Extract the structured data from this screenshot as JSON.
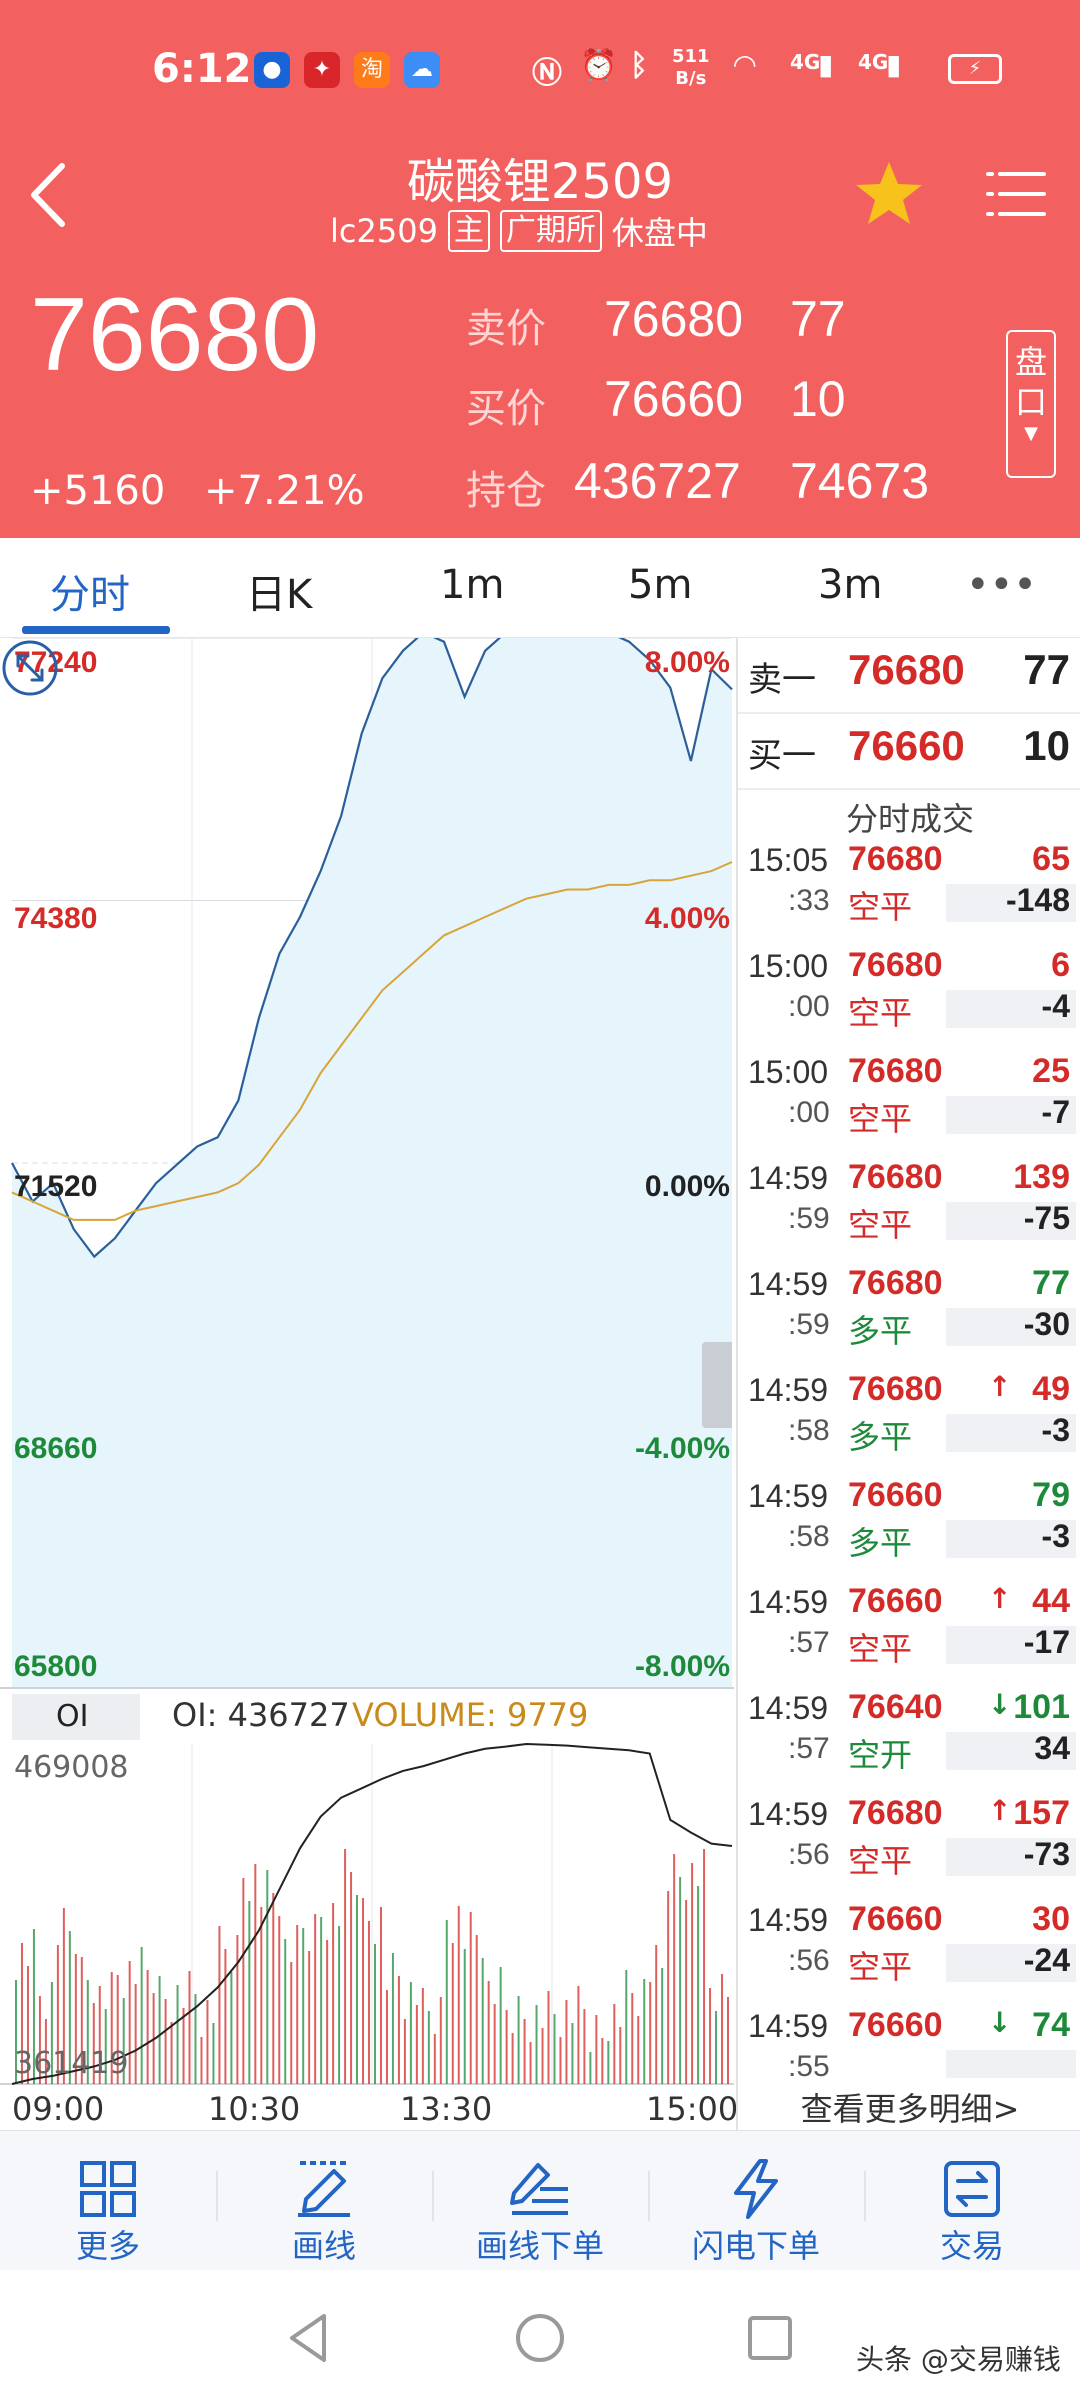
{
  "status_bar": {
    "time": "6:12",
    "app_icons": [
      "qq-icon",
      "app-red-icon",
      "taobao-icon",
      "weather-icon"
    ],
    "taobao_glyph": "淘",
    "net_speed_top": "511",
    "net_speed_bottom": "B/s",
    "net_4g_1": "4G",
    "net_4g_2": "4G"
  },
  "header": {
    "title": "碳酸锂2509",
    "code": "lc2509",
    "main_tag": "主",
    "exchange": "广期所",
    "status": "休盘中",
    "last_price": "76680",
    "change": "+5160",
    "change_pct": "+7.21%",
    "ask_label": "卖价",
    "ask_price": "76680",
    "ask_vol": "77",
    "bid_label": "买价",
    "bid_price": "76660",
    "bid_vol": "10",
    "oi_label": "持仓",
    "oi_value": "436727",
    "oi_change": "74673",
    "depth_button": "盘口",
    "colors": {
      "background": "#f2605f",
      "star": "#f7c21b"
    }
  },
  "tabs": [
    {
      "label": "分时",
      "active": true
    },
    {
      "label": "日K",
      "active": false
    },
    {
      "label": "1m",
      "active": false
    },
    {
      "label": "5m",
      "active": false
    },
    {
      "label": "3m",
      "active": false
    },
    {
      "label": "•••",
      "active": false
    }
  ],
  "chart": {
    "price_labels": [
      {
        "left": "77240",
        "right": "8.00%",
        "color": "red"
      },
      {
        "left": "74380",
        "right": "4.00%",
        "color": "red"
      },
      {
        "left": "71520",
        "right": "0.00%",
        "color": "neutral"
      },
      {
        "left": "68660",
        "right": "-4.00%",
        "color": "green"
      },
      {
        "left": "65800",
        "right": "-8.00%",
        "color": "green"
      }
    ],
    "oi_button": "OI",
    "oi_info": "OI: 436727",
    "volume_info": "VOLUME: 9779",
    "oi_max": "469008",
    "oi_min": "361419",
    "time_labels": [
      "09:00",
      "10:30",
      "13:30",
      "15:00"
    ]
  },
  "chart_data": {
    "type": "line",
    "title": "",
    "ylim": [
      65800,
      77240
    ],
    "prev_settle": 71520,
    "x_ticks": [
      "09:00",
      "10:30",
      "13:30",
      "15:00"
    ],
    "series": [
      {
        "values": [
          71520,
          71100,
          71300,
          70800,
          70500,
          70700,
          71000,
          71300,
          71500,
          71700,
          71800,
          72200,
          73100,
          73800,
          74200,
          74700,
          75300,
          76200,
          76800,
          77100,
          77300,
          77200,
          76600,
          77100,
          77300,
          77400,
          77300,
          77400,
          77300,
          77300,
          77200,
          77000,
          76700,
          75900,
          76900,
          76680
        ]
      },
      {
        "values": [
          71200,
          71100,
          71000,
          70900,
          70900,
          70900,
          71000,
          71050,
          71100,
          71150,
          71200,
          71300,
          71500,
          71800,
          72100,
          72500,
          72800,
          73100,
          73400,
          73600,
          73800,
          74000,
          74100,
          74200,
          74300,
          74400,
          74450,
          74500,
          74500,
          74550,
          74550,
          74600,
          74600,
          74650,
          74700,
          74800
        ]
      }
    ],
    "oi_series": {
      "ylim": [
        361419,
        469008
      ],
      "values": [
        361419,
        363000,
        364000,
        365500,
        367000,
        369000,
        372000,
        376000,
        381000,
        386000,
        392000,
        400000,
        410000,
        423000,
        436000,
        446000,
        452000,
        455000,
        458000,
        460500,
        462000,
        464000,
        466000,
        467500,
        468200,
        469008,
        468800,
        468500,
        468000,
        467500,
        467000,
        466000,
        445000,
        441000,
        437500,
        436727
      ]
    }
  },
  "orderbook": {
    "ask_label": "卖一",
    "ask_price": "76680",
    "ask_vol": "77",
    "bid_label": "买一",
    "bid_price": "76660",
    "bid_vol": "10"
  },
  "ticks_title": "分时成交",
  "ticks": [
    {
      "hm": "15:05",
      "sec": ":33",
      "price": "76680",
      "arrow": "",
      "vol": "65",
      "vol_color": "red",
      "type": "空平",
      "type_color": "red",
      "oi": "-148"
    },
    {
      "hm": "15:00",
      "sec": ":00",
      "price": "76680",
      "arrow": "",
      "vol": "6",
      "vol_color": "red",
      "type": "空平",
      "type_color": "red",
      "oi": "-4"
    },
    {
      "hm": "15:00",
      "sec": ":00",
      "price": "76680",
      "arrow": "",
      "vol": "25",
      "vol_color": "red",
      "type": "空平",
      "type_color": "red",
      "oi": "-7"
    },
    {
      "hm": "14:59",
      "sec": ":59",
      "price": "76680",
      "arrow": "",
      "vol": "139",
      "vol_color": "red",
      "type": "空平",
      "type_color": "red",
      "oi": "-75"
    },
    {
      "hm": "14:59",
      "sec": ":59",
      "price": "76680",
      "arrow": "",
      "vol": "77",
      "vol_color": "green",
      "type": "多平",
      "type_color": "green",
      "oi": "-30"
    },
    {
      "hm": "14:59",
      "sec": ":58",
      "price": "76680",
      "arrow": "↑",
      "vol": "49",
      "vol_color": "red",
      "type": "多平",
      "type_color": "green",
      "oi": "-3"
    },
    {
      "hm": "14:59",
      "sec": ":58",
      "price": "76660",
      "arrow": "",
      "vol": "79",
      "vol_color": "green",
      "type": "多平",
      "type_color": "green",
      "oi": "-3"
    },
    {
      "hm": "14:59",
      "sec": ":57",
      "price": "76660",
      "arrow": "↑",
      "vol": "44",
      "vol_color": "red",
      "type": "空平",
      "type_color": "red",
      "oi": "-17"
    },
    {
      "hm": "14:59",
      "sec": ":57",
      "price": "76640",
      "arrow": "↓",
      "vol": "101",
      "vol_color": "green",
      "type": "空开",
      "type_color": "green",
      "oi": "34"
    },
    {
      "hm": "14:59",
      "sec": ":56",
      "price": "76680",
      "arrow": "↑",
      "vol": "157",
      "vol_color": "red",
      "type": "空平",
      "type_color": "red",
      "oi": "-73"
    },
    {
      "hm": "14:59",
      "sec": ":56",
      "price": "76660",
      "arrow": "",
      "vol": "30",
      "vol_color": "red",
      "type": "空平",
      "type_color": "red",
      "oi": "-24"
    },
    {
      "hm": "14:59",
      "sec": ":55",
      "price": "76660",
      "arrow": "↓",
      "vol": "74",
      "vol_color": "green",
      "type": "",
      "type_color": "green",
      "oi": ""
    }
  ],
  "more_detail": "查看更多明细>",
  "toolbar": [
    {
      "label": "更多",
      "icon": "grid-icon"
    },
    {
      "label": "画线",
      "icon": "pen-line-icon"
    },
    {
      "label": "画线下单",
      "icon": "pen-order-icon"
    },
    {
      "label": "闪电下单",
      "icon": "lightning-icon"
    },
    {
      "label": "交易",
      "icon": "exchange-icon"
    }
  ],
  "watermark": "头条 @交易赚钱"
}
